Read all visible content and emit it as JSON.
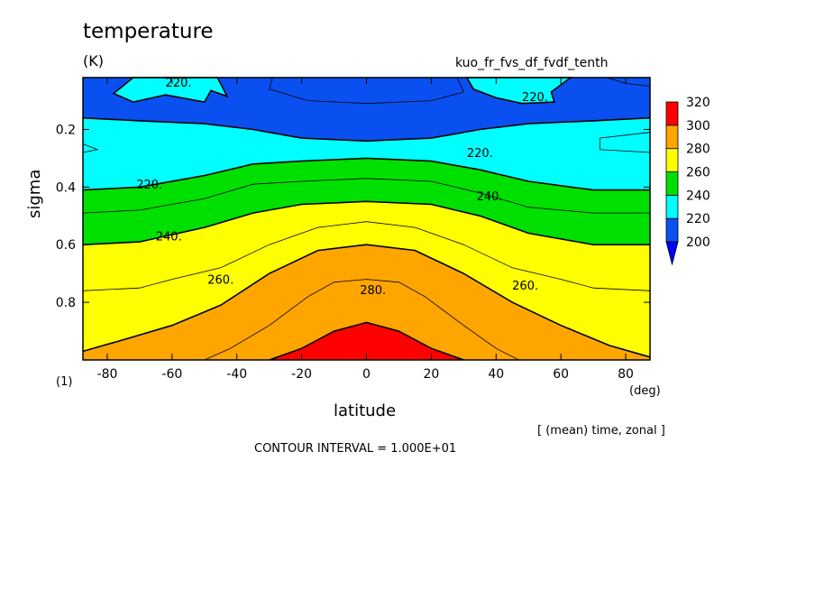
{
  "chart_data": {
    "type": "contour",
    "title": "temperature",
    "units": "(K)",
    "subtitle": "kuo_fr_fvs_df_fvdf_tenth",
    "xlabel": "latitude",
    "xunit": "(deg)",
    "ylabel": "sigma",
    "yunit": "(1)",
    "averaging_note": "[ (mean) time, zonal ]",
    "contour_interval": "CONTOUR INTERVAL = 1.000E+01",
    "xlim": [
      -87.5,
      87.5
    ],
    "ylim": [
      1.0,
      0.02
    ],
    "x_ticks": [
      -80,
      -60,
      -40,
      -20,
      0,
      20,
      40,
      60,
      80
    ],
    "x_tick_labels": [
      "-80",
      "-60",
      "-40",
      "-20",
      "0",
      "20",
      "40",
      "60",
      "80"
    ],
    "y_ticks": [
      0.2,
      0.4,
      0.6,
      0.8
    ],
    "y_tick_labels": [
      "0.2",
      "0.4",
      "0.6",
      "0.8"
    ],
    "colorbar": {
      "levels": [
        200,
        220,
        240,
        260,
        280,
        300,
        320
      ],
      "labels": [
        "200",
        "220",
        "240",
        "260",
        "280",
        "300",
        "320"
      ],
      "colors": [
        "#0a50f0",
        "#00ffff",
        "#00e000",
        "#ffff00",
        "#ffa500",
        "#ff0000"
      ],
      "extend_min_color": "#0000ff"
    },
    "contour_labels": [
      {
        "text": "220.",
        "lat": -58,
        "sigma": 0.035
      },
      {
        "text": "220.",
        "lat": 52,
        "sigma": 0.085
      },
      {
        "text": "220.",
        "lat": 35,
        "sigma": 0.28
      },
      {
        "text": "220.",
        "lat": -67,
        "sigma": 0.39
      },
      {
        "text": "240.",
        "lat": 38,
        "sigma": 0.43
      },
      {
        "text": "240.",
        "lat": -61,
        "sigma": 0.57
      },
      {
        "text": "260.",
        "lat": -45,
        "sigma": 0.72
      },
      {
        "text": "260.",
        "lat": 49,
        "sigma": 0.74
      },
      {
        "text": "280.",
        "lat": 2,
        "sigma": 0.755
      }
    ],
    "bands": [
      {
        "level": 220,
        "lat": [
          -87.5,
          -70,
          -50,
          -35,
          -20,
          0,
          20,
          35,
          50,
          70,
          87.5
        ],
        "sigma": [
          0.16,
          0.17,
          0.18,
          0.2,
          0.23,
          0.24,
          0.23,
          0.2,
          0.18,
          0.17,
          0.16
        ]
      },
      {
        "level": 240,
        "lat": [
          -87.5,
          -70,
          -50,
          -35,
          -20,
          0,
          20,
          35,
          50,
          70,
          87.5
        ],
        "sigma": [
          0.41,
          0.4,
          0.36,
          0.32,
          0.31,
          0.3,
          0.31,
          0.34,
          0.38,
          0.41,
          0.41
        ]
      },
      {
        "level": 250,
        "lat": [
          -87.5,
          -70,
          -50,
          -35,
          -20,
          0,
          20,
          35,
          50,
          70,
          87.5
        ],
        "sigma": [
          0.49,
          0.48,
          0.44,
          0.39,
          0.38,
          0.37,
          0.38,
          0.42,
          0.47,
          0.49,
          0.49
        ]
      },
      {
        "level": 260,
        "lat": [
          -87.5,
          -70,
          -50,
          -35,
          -20,
          0,
          20,
          35,
          50,
          70,
          87.5
        ],
        "sigma": [
          0.6,
          0.59,
          0.54,
          0.49,
          0.46,
          0.45,
          0.46,
          0.5,
          0.56,
          0.6,
          0.6
        ]
      },
      {
        "level": 270,
        "lat": [
          -87.5,
          -70,
          -60,
          -45,
          -30,
          -15,
          0,
          15,
          30,
          45,
          60,
          70,
          87.5
        ],
        "sigma": [
          0.76,
          0.75,
          0.72,
          0.68,
          0.6,
          0.54,
          0.52,
          0.54,
          0.6,
          0.68,
          0.72,
          0.75,
          0.76
        ]
      },
      {
        "level": 280,
        "lat": [
          -87.5,
          -75,
          -60,
          -45,
          -30,
          -15,
          0,
          15,
          30,
          45,
          60,
          75,
          87.5
        ],
        "sigma": [
          0.97,
          0.93,
          0.88,
          0.81,
          0.7,
          0.62,
          0.6,
          0.62,
          0.7,
          0.8,
          0.88,
          0.95,
          0.99
        ]
      },
      {
        "level": 290,
        "lat": [
          -50,
          -42,
          -30,
          -18,
          -10,
          0,
          10,
          18,
          30,
          40,
          47,
          50
        ],
        "sigma": [
          1.0,
          0.96,
          0.88,
          0.78,
          0.73,
          0.72,
          0.73,
          0.78,
          0.88,
          0.96,
          1.0,
          1.0
        ]
      },
      {
        "level": 300,
        "lat": [
          -30,
          -20,
          -10,
          0,
          10,
          20,
          30
        ],
        "sigma": [
          1.0,
          0.96,
          0.9,
          0.87,
          0.9,
          0.96,
          1.0
        ]
      }
    ]
  }
}
